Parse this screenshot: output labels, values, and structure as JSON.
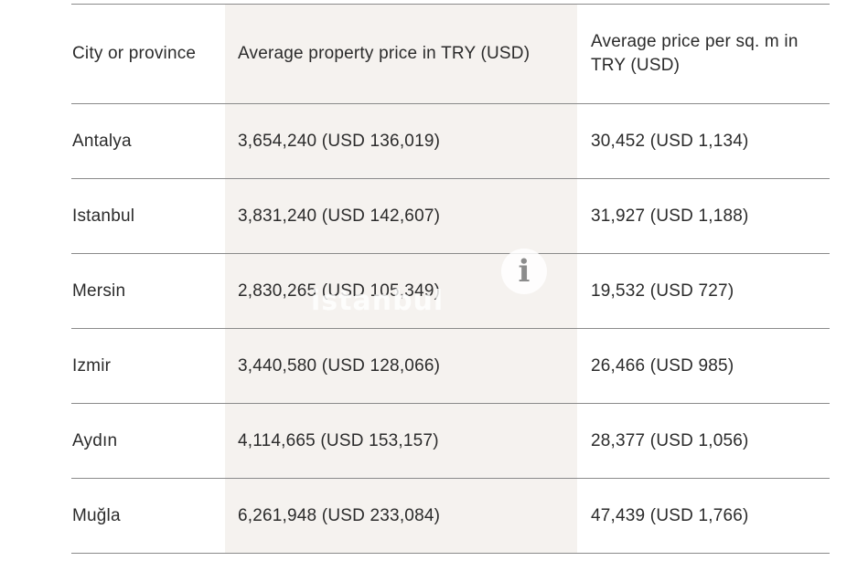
{
  "table": {
    "headers": [
      "City or province",
      "Average property price in TRY (USD)",
      "Average price per sq. m in TRY (USD)"
    ],
    "rows": [
      [
        "Antalya",
        "3,654,240 (USD 136,019)",
        "30,452 (USD 1,134)"
      ],
      [
        "Istanbul",
        "3,831,240 (USD 142,607)",
        "31,927 (USD 1,188)"
      ],
      [
        "Mersin",
        "2,830,265 (USD 105,349)",
        "19,532 (USD 727)"
      ],
      [
        "Izmir",
        "3,440,580 (USD 128,066)",
        "26,466 (USD 985)"
      ],
      [
        "Aydın",
        "4,114,665 (USD 153,157)",
        "28,377 (USD 1,056)"
      ],
      [
        "Muğla",
        "6,261,948 (USD 233,084)",
        "47,439 (USD 1,766)"
      ]
    ]
  },
  "watermark": {
    "icon": "info-i-icon",
    "glyph": "i",
    "text": "istanbul"
  },
  "colors": {
    "highlight_column": "#f5f2ef",
    "rule": "#8a8a8a",
    "text": "#2b2b2b"
  }
}
